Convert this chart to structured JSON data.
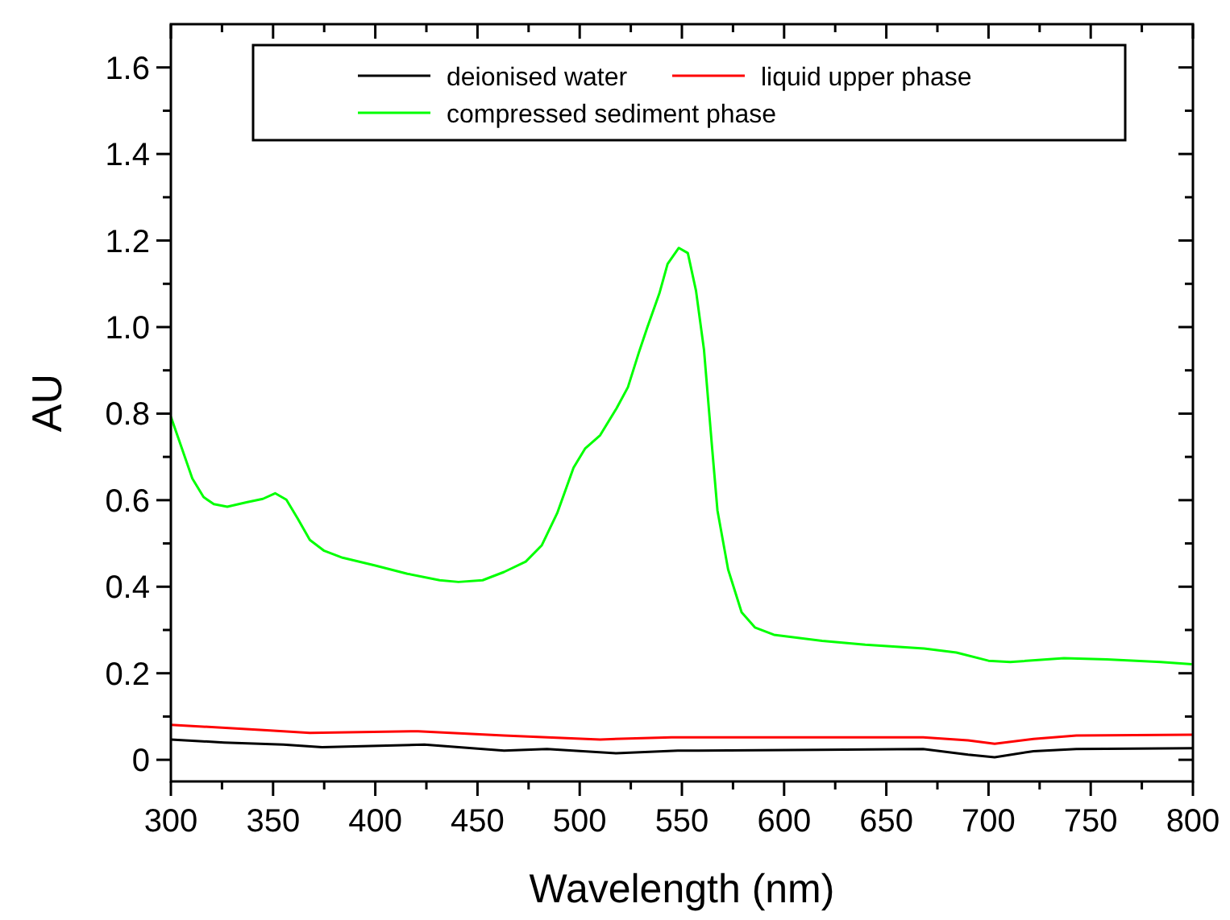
{
  "chart_data": {
    "type": "line",
    "xlabel": "Wavelength (nm)",
    "ylabel": "AU",
    "xlim": [
      300,
      800
    ],
    "ylim": [
      -0.05,
      1.7
    ],
    "xticks": [
      300,
      {
        "value": 325,
        "label": null
      },
      350,
      {
        "value": 375,
        "label": null
      },
      400,
      {
        "value": 425,
        "label": null
      },
      450,
      {
        "value": 475,
        "label": null
      },
      500,
      {
        "value": 525,
        "label": null
      },
      550,
      {
        "value": 575,
        "label": null
      },
      600,
      {
        "value": 625,
        "label": null
      },
      650,
      {
        "value": 675,
        "label": null
      },
      700,
      {
        "value": 725,
        "label": null
      },
      750,
      {
        "value": 775,
        "label": null
      },
      800
    ],
    "yticks": [
      0,
      {
        "value": 0.1,
        "label": null
      },
      0.2,
      {
        "value": 0.3,
        "label": null
      },
      0.4,
      {
        "value": 0.5,
        "label": null
      },
      0.6,
      {
        "value": 0.7,
        "label": null
      },
      0.8,
      {
        "value": 0.9,
        "label": null
      },
      {
        "value": 1,
        "label": "1.0"
      },
      {
        "value": 1.1,
        "label": null
      },
      1.2,
      {
        "value": 1.3,
        "label": null
      },
      1.4,
      {
        "value": 1.5,
        "label": null
      },
      1.6
    ],
    "grid": false,
    "legend": "top",
    "marker": "none",
    "line_style": "solid",
    "series": [
      {
        "name": "deionised water",
        "color": "#000000",
        "x": [
          300,
          326,
          355,
          374,
          424,
          463,
          484,
          518,
          548,
          558,
          668,
          690,
          703,
          722,
          743,
          800
        ],
        "values": [
          0.047,
          0.04,
          0.035,
          0.029,
          0.035,
          0.021,
          0.025,
          0.015,
          0.021,
          0.021,
          0.025,
          0.012,
          0.006,
          0.02,
          0.025,
          0.027
        ]
      },
      {
        "name": "liquid upper phase",
        "color": "#ff0000",
        "x": [
          300,
          347,
          368,
          421,
          463,
          510,
          545,
          579,
          668,
          690,
          703,
          722,
          743,
          800
        ],
        "values": [
          0.081,
          0.068,
          0.062,
          0.066,
          0.056,
          0.047,
          0.052,
          0.052,
          0.052,
          0.045,
          0.037,
          0.048,
          0.056,
          0.058
        ]
      },
      {
        "name": "compressed sediment phase",
        "color": "#00ff00",
        "x": [
          300,
          305,
          310.5,
          316,
          321,
          327.6,
          337,
          345,
          351,
          356.5,
          362,
          368,
          375,
          384,
          400,
          415.7,
          431.5,
          440.7,
          452.5,
          463,
          473.6,
          481.5,
          489,
          497,
          502.6,
          510,
          518,
          523.6,
          529,
          533,
          539,
          543,
          548.5,
          552.9,
          556.9,
          560.8,
          564.7,
          567.4,
          572.6,
          579.2,
          585.7,
          595,
          618.6,
          639.7,
          668.5,
          684.3,
          700,
          710.6,
          736.9,
          757.9,
          784.2,
          799.5
        ],
        "values": [
          0.793,
          0.725,
          0.65,
          0.607,
          0.591,
          0.585,
          0.595,
          0.603,
          0.616,
          0.601,
          0.558,
          0.508,
          0.483,
          0.467,
          0.449,
          0.43,
          0.415,
          0.411,
          0.415,
          0.434,
          0.458,
          0.496,
          0.57,
          0.675,
          0.719,
          0.75,
          0.812,
          0.861,
          0.942,
          0.998,
          1.078,
          1.146,
          1.183,
          1.171,
          1.084,
          0.948,
          0.725,
          0.576,
          0.44,
          0.341,
          0.306,
          0.289,
          0.275,
          0.266,
          0.257,
          0.248,
          0.229,
          0.226,
          0.235,
          0.232,
          0.226,
          0.221
        ]
      }
    ]
  }
}
